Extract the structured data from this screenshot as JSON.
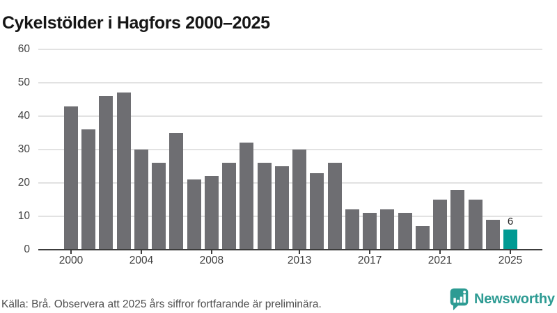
{
  "title": "Cykelstölder i Hagfors 2000–2025",
  "footer": {
    "source_note": "Källa: Brå. Observera att 2025 års siffror fortfarande är preliminära."
  },
  "branding": {
    "name": "Newsworthy",
    "icon": "newsworthy-speech-bubble-chart-icon",
    "color": "#2D9B93"
  },
  "chart_data": {
    "type": "bar",
    "title": "Cykelstölder i Hagfors 2000–2025",
    "categories": [
      2000,
      2001,
      2002,
      2003,
      2004,
      2005,
      2006,
      2007,
      2008,
      2009,
      2010,
      2011,
      2012,
      2013,
      2014,
      2015,
      2016,
      2017,
      2018,
      2019,
      2020,
      2021,
      2022,
      2023,
      2024,
      2025
    ],
    "values": [
      43,
      36,
      46,
      47,
      30,
      26,
      35,
      21,
      22,
      26,
      32,
      26,
      25,
      30,
      23,
      26,
      12,
      11,
      12,
      11,
      7,
      15,
      18,
      15,
      9,
      6
    ],
    "xlabel": "",
    "ylabel": "",
    "ylim": [
      0,
      60
    ],
    "yticks": [
      0,
      10,
      20,
      30,
      40,
      50,
      60
    ],
    "xticks": [
      2000,
      2004,
      2008,
      2013,
      2017,
      2021,
      2025
    ],
    "grid": true,
    "legend": false,
    "bar_color": "#6E6E72",
    "highlight_color": "#009A93",
    "highlight_year": 2025,
    "highlight_label": "6"
  }
}
